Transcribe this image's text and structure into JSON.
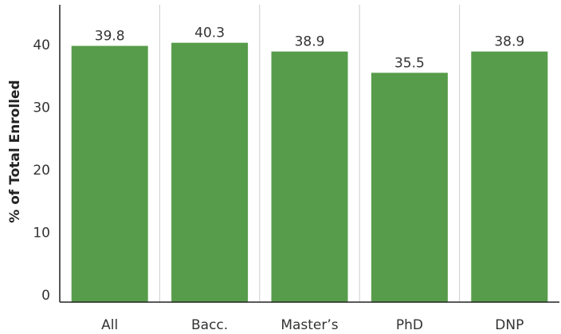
{
  "chart_data": {
    "type": "bar",
    "categories": [
      "All",
      "Bacc.",
      "Master’s",
      "PhD",
      "DNP"
    ],
    "values": [
      39.8,
      40.3,
      38.9,
      35.5,
      38.9
    ],
    "value_labels": [
      "39.8",
      "40.3",
      "38.9",
      "35.5",
      "38.9"
    ],
    "title": "",
    "xlabel": "",
    "ylabel": "% of Total Enrolled",
    "ylim": [
      0,
      45
    ],
    "yticks": [
      0,
      10,
      20,
      30,
      40
    ],
    "grid": "vertical-separators",
    "bar_color": "#579c4a",
    "separator_color": "#cccccc",
    "axis_color": "#222222"
  }
}
